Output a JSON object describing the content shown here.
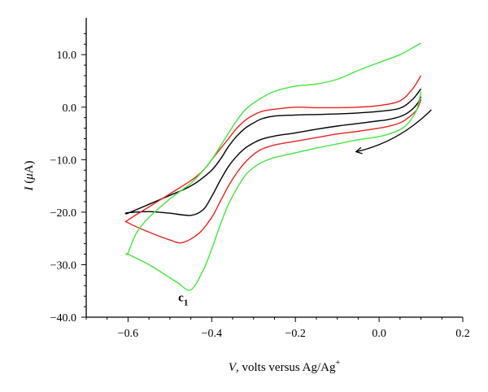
{
  "chart_data": {
    "type": "line",
    "xlabel": {
      "italic": "V",
      "rest": ", volts versus Ag/Ag",
      "sup": "+"
    },
    "ylabel": {
      "italic": "I",
      "rest_open": " (",
      "mu": "μ",
      "rest_close": "A)"
    },
    "xlim": [
      -0.7,
      0.2
    ],
    "ylim": [
      -40,
      17
    ],
    "x_ticks": [
      -0.6,
      -0.4,
      -0.2,
      0.0,
      0.2
    ],
    "x_tick_labels": [
      "−0.6",
      "−0.4",
      "−0.2",
      "0.0",
      "0.2"
    ],
    "y_ticks": [
      10,
      0,
      -10,
      -20,
      -30,
      -40
    ],
    "y_tick_labels": [
      "10.0",
      "0.0",
      "−10.0",
      "−20.0",
      "−30.0",
      "−40.0"
    ],
    "grid": false,
    "annotation": {
      "text": "c",
      "sub": "1",
      "x": -0.48,
      "y": -37
    },
    "scan_arrow": {
      "from": [
        0.125,
        -0.5
      ],
      "to": [
        -0.055,
        -8.5
      ]
    },
    "series": [
      {
        "color": "#000000",
        "x": [
          0.1,
          0.09,
          0.07,
          0.05,
          0.02,
          0.0,
          -0.05,
          -0.1,
          -0.15,
          -0.2,
          -0.25,
          -0.28,
          -0.3,
          -0.32,
          -0.34,
          -0.36,
          -0.38,
          -0.4,
          -0.42,
          -0.45,
          -0.5,
          -0.55,
          -0.6,
          -0.6,
          -0.55,
          -0.5,
          -0.47,
          -0.45,
          -0.43,
          -0.4,
          -0.38,
          -0.36,
          -0.34,
          -0.32,
          -0.3,
          -0.28,
          -0.25,
          -0.2,
          -0.15,
          -0.1,
          -0.05,
          0.0,
          0.05,
          0.08,
          0.1
        ],
        "y": [
          2.0,
          0.5,
          -1.0,
          -1.8,
          -2.4,
          -2.6,
          -3.1,
          -3.6,
          -4.2,
          -4.9,
          -5.5,
          -6.1,
          -6.8,
          -7.8,
          -9.3,
          -11.3,
          -14.0,
          -17.0,
          -19.5,
          -20.6,
          -20.2,
          -19.9,
          -20.1,
          -20.2,
          -18.5,
          -16.8,
          -15.8,
          -15.0,
          -14.0,
          -12.0,
          -10.0,
          -7.5,
          -5.5,
          -4.0,
          -3.0,
          -2.2,
          -1.7,
          -1.5,
          -1.4,
          -1.3,
          -1.1,
          -0.8,
          -0.2,
          1.5,
          3.5
        ]
      },
      {
        "color": "#e8231f",
        "x": [
          0.1,
          0.09,
          0.07,
          0.05,
          0.02,
          0.0,
          -0.05,
          -0.1,
          -0.15,
          -0.2,
          -0.25,
          -0.28,
          -0.3,
          -0.32,
          -0.34,
          -0.36,
          -0.38,
          -0.4,
          -0.43,
          -0.47,
          -0.5,
          -0.55,
          -0.6,
          -0.6,
          -0.55,
          -0.5,
          -0.45,
          -0.42,
          -0.4,
          -0.38,
          -0.36,
          -0.34,
          -0.32,
          -0.3,
          -0.28,
          -0.25,
          -0.2,
          -0.15,
          -0.1,
          -0.05,
          0.0,
          0.05,
          0.08,
          0.1
        ],
        "y": [
          1.5,
          -0.5,
          -2.0,
          -3.0,
          -3.7,
          -4.0,
          -4.6,
          -5.1,
          -5.8,
          -6.5,
          -7.2,
          -8.0,
          -9.0,
          -10.5,
          -12.5,
          -15.0,
          -18.0,
          -21.0,
          -24.0,
          -25.8,
          -25.3,
          -23.8,
          -22.0,
          -21.5,
          -19.0,
          -16.5,
          -14.0,
          -12.0,
          -10.0,
          -8.0,
          -6.0,
          -4.0,
          -2.5,
          -1.5,
          -0.8,
          -0.4,
          0.0,
          -0.1,
          -0.1,
          0.0,
          0.3,
          1.2,
          3.5,
          6.0
        ]
      },
      {
        "color": "#3ee83a",
        "x": [
          0.1,
          0.09,
          0.07,
          0.05,
          0.02,
          0.0,
          -0.05,
          -0.1,
          -0.15,
          -0.2,
          -0.25,
          -0.28,
          -0.3,
          -0.32,
          -0.34,
          -0.36,
          -0.38,
          -0.4,
          -0.42,
          -0.45,
          -0.48,
          -0.5,
          -0.55,
          -0.6,
          -0.6,
          -0.58,
          -0.55,
          -0.5,
          -0.45,
          -0.42,
          -0.4,
          -0.38,
          -0.36,
          -0.34,
          -0.32,
          -0.3,
          -0.28,
          -0.25,
          -0.2,
          -0.15,
          -0.1,
          -0.05,
          0.0,
          0.05,
          0.08,
          0.1
        ],
        "y": [
          3.0,
          -0.5,
          -3.0,
          -4.3,
          -5.2,
          -5.6,
          -6.2,
          -7.0,
          -7.8,
          -8.7,
          -9.6,
          -10.5,
          -11.5,
          -13.0,
          -15.5,
          -18.5,
          -22.5,
          -27.0,
          -31.0,
          -34.8,
          -33.5,
          -32.5,
          -30.0,
          -28.0,
          -27.8,
          -24.0,
          -21.0,
          -17.5,
          -14.5,
          -12.0,
          -10.0,
          -7.5,
          -5.0,
          -2.5,
          -0.5,
          0.8,
          1.8,
          3.0,
          4.0,
          4.4,
          5.3,
          7.0,
          8.5,
          10.0,
          11.3,
          12.2
        ]
      }
    ]
  }
}
